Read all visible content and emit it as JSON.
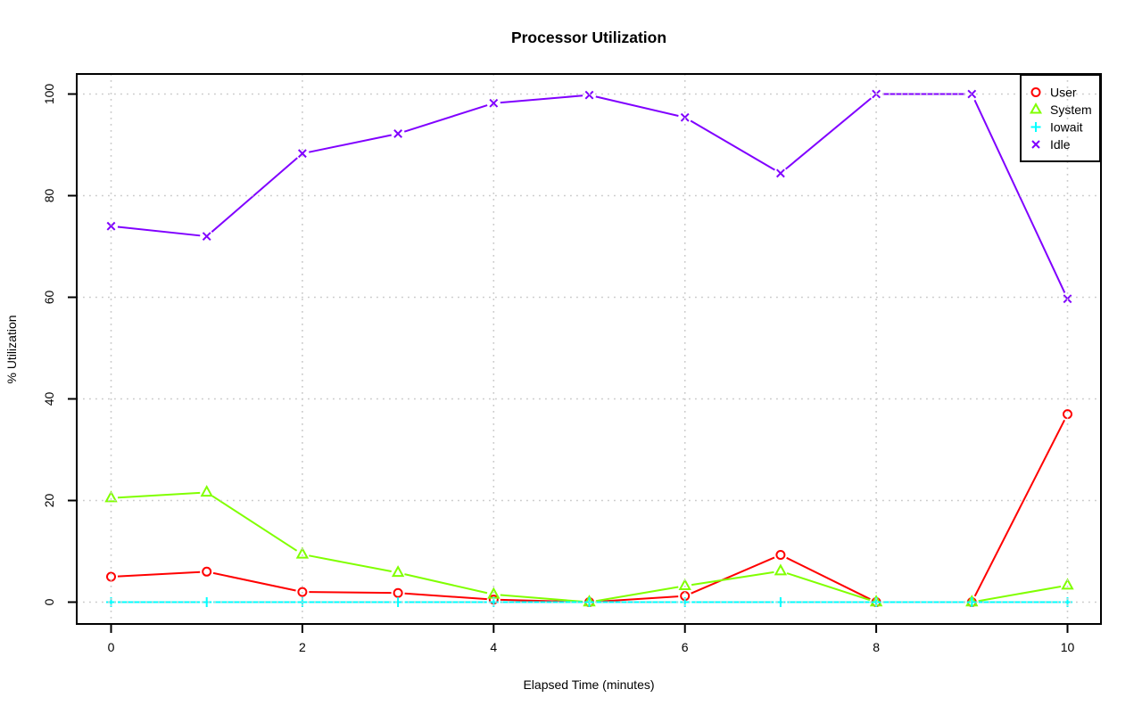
{
  "chart_data": {
    "type": "line",
    "title": "Processor Utilization",
    "xlabel": "Elapsed Time (minutes)",
    "ylabel": "% Utilization",
    "x": [
      0,
      1,
      2,
      3,
      4,
      5,
      6,
      7,
      8,
      9,
      10
    ],
    "xlim": [
      0,
      10
    ],
    "ylim": [
      0,
      100
    ],
    "x_ticks": [
      0,
      2,
      4,
      6,
      8,
      10
    ],
    "y_ticks": [
      0,
      20,
      40,
      60,
      80,
      100
    ],
    "grid": true,
    "grid_style": "dotted",
    "grid_color": "#c9c9c9",
    "legend_position": "topright",
    "series": [
      {
        "name": "User",
        "color": "#ff0000",
        "marker": "circle",
        "values": [
          5,
          6,
          2,
          1.8,
          0.5,
          0,
          1.2,
          9.3,
          0,
          0,
          37
        ]
      },
      {
        "name": "System",
        "color": "#80ff00",
        "marker": "triangle",
        "values": [
          20.5,
          21.6,
          9.4,
          5.8,
          1.5,
          0,
          3.2,
          6.1,
          0,
          0,
          3.3
        ]
      },
      {
        "name": "Iowait",
        "color": "#00ffff",
        "marker": "plus",
        "values": [
          0,
          0,
          0,
          0,
          0,
          0,
          0,
          0,
          0,
          0,
          0
        ]
      },
      {
        "name": "Idle",
        "color": "#8000ff",
        "marker": "x",
        "values": [
          74,
          72,
          88.3,
          92.2,
          98.2,
          99.8,
          95.4,
          84.4,
          100,
          100,
          59.7
        ]
      }
    ]
  }
}
